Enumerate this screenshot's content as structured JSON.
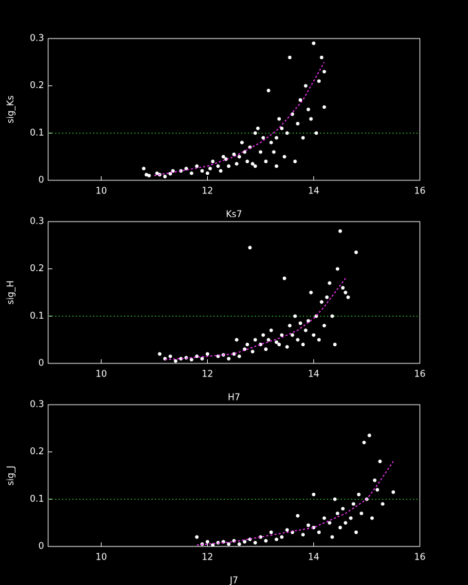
{
  "chart_data": [
    {
      "type": "scatter",
      "xlabel": "Ks7",
      "ylabel": "sig_Ks",
      "xlim": [
        9,
        16
      ],
      "ylim": [
        0,
        0.3
      ],
      "xticks": [
        10,
        12,
        14,
        16
      ],
      "yticks": [
        0,
        0.1,
        0.2,
        0.3
      ],
      "points": {
        "color": "#ffffff",
        "x": [
          10.8,
          10.85,
          10.9,
          11.05,
          11.1,
          11.2,
          11.3,
          11.35,
          11.5,
          11.6,
          11.7,
          11.8,
          11.9,
          12.0,
          12.05,
          12.1,
          12.2,
          12.25,
          12.3,
          12.35,
          12.4,
          12.5,
          12.55,
          12.6,
          12.65,
          12.7,
          12.75,
          12.8,
          12.85,
          12.9,
          12.95,
          13.0,
          13.05,
          13.1,
          13.15,
          13.2,
          13.25,
          13.3,
          13.35,
          13.4,
          13.45,
          13.5,
          13.55,
          13.6,
          13.65,
          13.7,
          13.75,
          13.8,
          13.85,
          13.9,
          13.95,
          14.0,
          14.05,
          14.1,
          14.15,
          14.2,
          14.2,
          13.3,
          12.9
        ],
        "y": [
          0.025,
          0.012,
          0.01,
          0.015,
          0.012,
          0.008,
          0.014,
          0.02,
          0.02,
          0.025,
          0.015,
          0.03,
          0.02,
          0.015,
          0.025,
          0.04,
          0.03,
          0.02,
          0.05,
          0.045,
          0.03,
          0.055,
          0.035,
          0.05,
          0.08,
          0.06,
          0.04,
          0.07,
          0.035,
          0.1,
          0.11,
          0.06,
          0.09,
          0.04,
          0.19,
          0.08,
          0.06,
          0.09,
          0.13,
          0.11,
          0.05,
          0.1,
          0.26,
          0.14,
          0.04,
          0.12,
          0.17,
          0.09,
          0.2,
          0.15,
          0.13,
          0.29,
          0.1,
          0.21,
          0.26,
          0.23,
          0.155,
          0.03,
          0.03
        ]
      },
      "fit": {
        "color": "#ff33ff",
        "x": [
          11.0,
          11.5,
          12.0,
          12.5,
          13.0,
          13.3,
          13.5,
          13.8,
          14.0,
          14.2
        ],
        "y": [
          0.01,
          0.02,
          0.03,
          0.05,
          0.08,
          0.105,
          0.13,
          0.17,
          0.21,
          0.25
        ]
      },
      "hline": {
        "value": 0.1,
        "color": "#33cc33"
      }
    },
    {
      "type": "scatter",
      "xlabel": "H7",
      "ylabel": "sig_H",
      "xlim": [
        9,
        16
      ],
      "ylim": [
        0,
        0.3
      ],
      "xticks": [
        10,
        12,
        14,
        16
      ],
      "yticks": [
        0,
        0.1,
        0.2,
        0.3
      ],
      "points": {
        "color": "#ffffff",
        "x": [
          11.1,
          11.2,
          11.3,
          11.4,
          11.5,
          11.6,
          11.7,
          11.8,
          11.9,
          12.0,
          12.2,
          12.3,
          12.4,
          12.5,
          12.55,
          12.6,
          12.7,
          12.75,
          12.8,
          12.85,
          12.9,
          13.0,
          13.05,
          13.1,
          13.15,
          13.2,
          13.3,
          13.35,
          13.4,
          13.45,
          13.5,
          13.55,
          13.6,
          13.65,
          13.7,
          13.75,
          13.8,
          13.85,
          13.9,
          13.95,
          14.0,
          14.05,
          14.1,
          14.15,
          14.2,
          14.25,
          14.3,
          14.35,
          14.4,
          14.45,
          14.5,
          14.55,
          14.6,
          14.65,
          14.8
        ],
        "y": [
          0.02,
          0.01,
          0.015,
          0.005,
          0.01,
          0.012,
          0.008,
          0.015,
          0.01,
          0.02,
          0.015,
          0.018,
          0.01,
          0.02,
          0.05,
          0.015,
          0.03,
          0.04,
          0.245,
          0.025,
          0.05,
          0.04,
          0.06,
          0.03,
          0.05,
          0.07,
          0.045,
          0.04,
          0.06,
          0.18,
          0.035,
          0.08,
          0.06,
          0.1,
          0.05,
          0.085,
          0.04,
          0.07,
          0.09,
          0.15,
          0.06,
          0.1,
          0.05,
          0.13,
          0.08,
          0.14,
          0.17,
          0.1,
          0.04,
          0.2,
          0.28,
          0.16,
          0.15,
          0.14,
          0.235
        ]
      },
      "fit": {
        "color": "#ff33ff",
        "x": [
          11.2,
          11.5,
          12.0,
          12.5,
          13.0,
          13.4,
          13.7,
          14.0,
          14.2,
          14.4,
          14.6
        ],
        "y": [
          0.008,
          0.01,
          0.015,
          0.02,
          0.04,
          0.055,
          0.07,
          0.095,
          0.12,
          0.15,
          0.18
        ]
      },
      "hline": {
        "value": 0.1,
        "color": "#33cc33"
      }
    },
    {
      "type": "scatter",
      "xlabel": "J7",
      "ylabel": "sig_J",
      "xlim": [
        9,
        16
      ],
      "ylim": [
        0,
        0.3
      ],
      "xticks": [
        10,
        12,
        14,
        16
      ],
      "yticks": [
        0,
        0.1,
        0.2,
        0.3
      ],
      "points": {
        "color": "#ffffff",
        "x": [
          11.8,
          11.9,
          12.0,
          12.1,
          12.2,
          12.3,
          12.4,
          12.5,
          12.6,
          12.7,
          12.8,
          12.9,
          13.0,
          13.1,
          13.2,
          13.3,
          13.4,
          13.5,
          13.6,
          13.7,
          13.8,
          13.9,
          14.0,
          14.0,
          14.1,
          14.2,
          14.3,
          14.35,
          14.4,
          14.45,
          14.5,
          14.55,
          14.6,
          14.7,
          14.75,
          14.8,
          14.85,
          14.9,
          14.95,
          15.0,
          15.05,
          15.1,
          15.15,
          15.2,
          15.25,
          15.3,
          15.5
        ],
        "y": [
          0.02,
          0.005,
          0.01,
          0.003,
          0.008,
          0.01,
          0.005,
          0.012,
          0.005,
          0.01,
          0.015,
          0.008,
          0.02,
          0.012,
          0.03,
          0.015,
          0.02,
          0.035,
          0.03,
          0.065,
          0.025,
          0.045,
          0.04,
          0.11,
          0.03,
          0.06,
          0.05,
          0.02,
          0.1,
          0.07,
          0.04,
          0.08,
          0.05,
          0.06,
          0.09,
          0.03,
          0.11,
          0.07,
          0.22,
          0.1,
          0.235,
          0.06,
          0.14,
          0.12,
          0.18,
          0.09,
          0.115
        ]
      },
      "fit": {
        "color": "#ff33ff",
        "x": [
          11.8,
          12.5,
          13.0,
          13.5,
          14.0,
          14.3,
          14.6,
          14.8,
          15.0,
          15.2,
          15.5
        ],
        "y": [
          0.003,
          0.01,
          0.02,
          0.03,
          0.04,
          0.055,
          0.07,
          0.085,
          0.1,
          0.13,
          0.18
        ]
      },
      "hline": {
        "value": 0.1,
        "color": "#33cc33"
      }
    }
  ]
}
